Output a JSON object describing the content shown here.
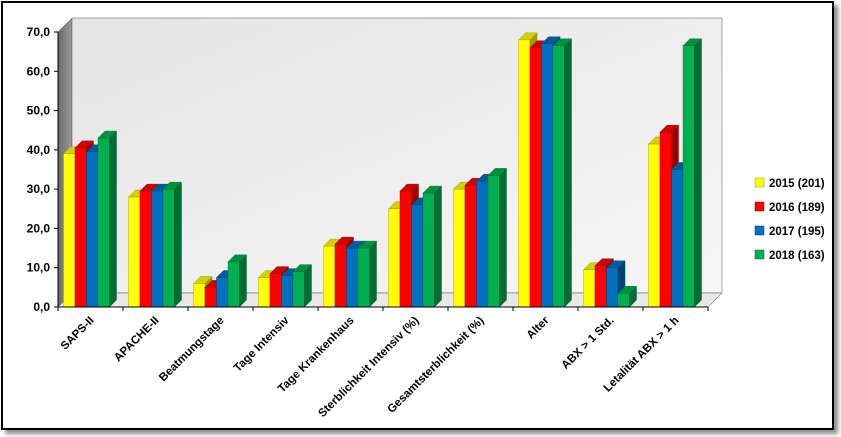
{
  "chart_data": {
    "type": "bar",
    "title": "",
    "xlabel": "",
    "ylabel": "",
    "ylim": [
      0,
      70
    ],
    "yticks": [
      "0,0",
      "10,0",
      "20,0",
      "30,0",
      "40,0",
      "50,0",
      "60,0",
      "70,0"
    ],
    "grid": false,
    "legend_position": "right",
    "categories": [
      "SAPS-II",
      "APACHE-II",
      "Beatmungstage",
      "Tage Intensiv",
      "Tage Krankenhaus",
      "Sterblichkeit Intensiv (%)",
      "Gesamtsterblichkeit (%)",
      "Alter",
      "ABX > 1 Std.",
      "Letalität ABX > 1 h"
    ],
    "series": [
      {
        "name": "2015 (201)",
        "color": "#ffff00",
        "values": [
          39.0,
          28.0,
          6.0,
          7.5,
          15.5,
          25.0,
          30.0,
          68.0,
          9.5,
          41.5
        ]
      },
      {
        "name": "2016 (189)",
        "color": "#ff0000",
        "values": [
          40.5,
          29.5,
          5.0,
          8.5,
          16.0,
          29.5,
          31.0,
          66.0,
          10.5,
          44.5
        ]
      },
      {
        "name": "2017 (195)",
        "color": "#0070c0",
        "values": [
          39.5,
          29.5,
          7.5,
          8.0,
          15.0,
          26.0,
          32.0,
          67.0,
          10.0,
          35.0
        ]
      },
      {
        "name": "2018 (163)",
        "color": "#00b050",
        "values": [
          43.0,
          30.0,
          11.5,
          9.0,
          15.0,
          29.0,
          33.5,
          66.5,
          3.5,
          66.5
        ]
      }
    ]
  }
}
